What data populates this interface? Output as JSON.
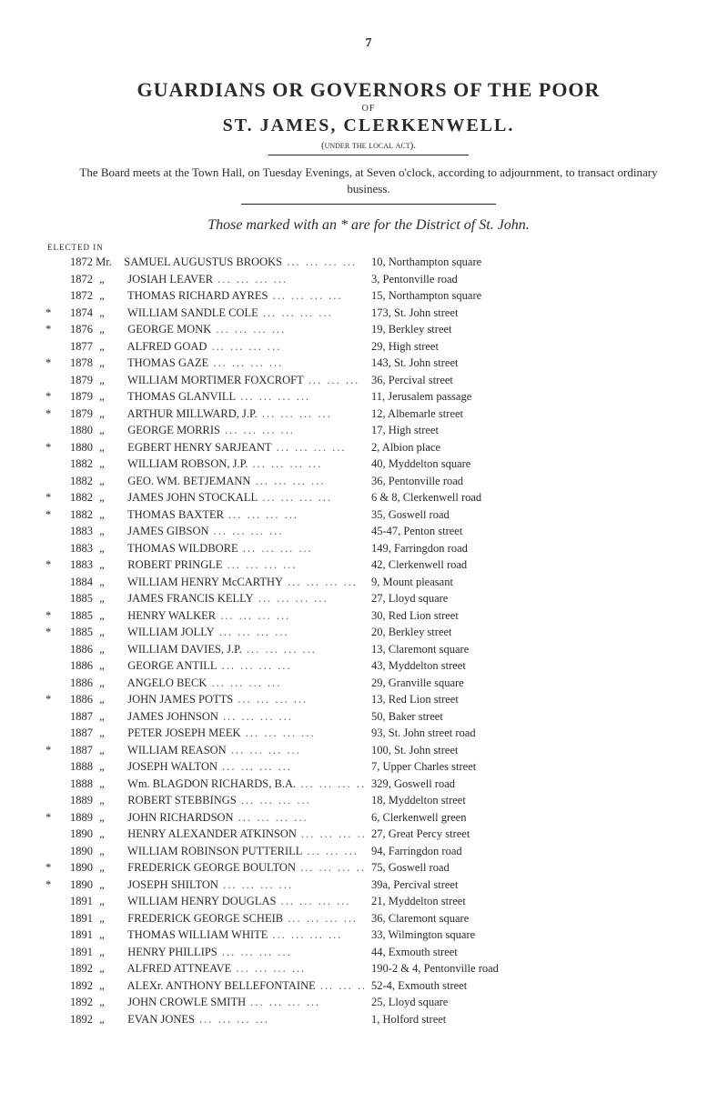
{
  "page_number": "7",
  "main_title": "GUARDIANS OR GOVERNORS OF THE POOR",
  "of_word": "OF",
  "sub_title": "ST. JAMES, CLERKENWELL.",
  "under_act": "(under the local act).",
  "board_text": "The Board meets at the Town Hall, on Tuesday Evenings, at Seven o'clock, according to adjournment, to transact ordinary business.",
  "italic_line": "Those marked with an * are for the District of St. John.",
  "elected_in": "ELECTED IN",
  "first_title": "Mr.",
  "entries": [
    {
      "star": "",
      "year": "1872",
      "title": "Mr.",
      "name": "SAMUEL AUGUSTUS BROOKS",
      "addr": "10, Northampton square"
    },
    {
      "star": "",
      "year": "1872",
      "title": "„",
      "name": "JOSIAH LEAVER",
      "addr": "3, Pentonville road"
    },
    {
      "star": "",
      "year": "1872",
      "title": "„",
      "name": "THOMAS RICHARD AYRES",
      "addr": "15, Northampton square"
    },
    {
      "star": "*",
      "year": "1874",
      "title": "„",
      "name": "WILLIAM SANDLE COLE",
      "addr": "173, St. John street"
    },
    {
      "star": "*",
      "year": "1876",
      "title": "„",
      "name": "GEORGE MONK",
      "addr": "19, Berkley street"
    },
    {
      "star": "",
      "year": "1877",
      "title": "„",
      "name": "ALFRED GOAD",
      "addr": "29, High street"
    },
    {
      "star": "*",
      "year": "1878",
      "title": "„",
      "name": "THOMAS GAZE",
      "addr": "143, St. John street"
    },
    {
      "star": "",
      "year": "1879",
      "title": "„",
      "name": "WILLIAM MORTIMER FOXCROFT",
      "addr": "36, Percival street"
    },
    {
      "star": "*",
      "year": "1879",
      "title": "„",
      "name": "THOMAS GLANVILL",
      "addr": "11, Jerusalem passage"
    },
    {
      "star": "*",
      "year": "1879",
      "title": "„",
      "name": "ARTHUR MILLWARD, J.P.",
      "addr": "12, Albemarle street"
    },
    {
      "star": "",
      "year": "1880",
      "title": "„",
      "name": "GEORGE MORRIS",
      "addr": "17, High street"
    },
    {
      "star": "*",
      "year": "1880",
      "title": "„",
      "name": "EGBERT HENRY SARJEANT",
      "addr": "2, Albion place"
    },
    {
      "star": "",
      "year": "1882",
      "title": "„",
      "name": "WILLIAM ROBSON, J.P.",
      "addr": "40, Myddelton square"
    },
    {
      "star": "",
      "year": "1882",
      "title": "„",
      "name": "GEO. WM. BETJEMANN",
      "addr": "36, Pentonville road"
    },
    {
      "star": "*",
      "year": "1882",
      "title": "„",
      "name": "JAMES JOHN STOCKALL",
      "addr": "6 & 8, Clerkenwell road"
    },
    {
      "star": "*",
      "year": "1882",
      "title": "„",
      "name": "THOMAS BAXTER",
      "addr": "35, Goswell road"
    },
    {
      "star": "",
      "year": "1883",
      "title": "„",
      "name": "JAMES GIBSON",
      "addr": "45-47, Penton street"
    },
    {
      "star": "",
      "year": "1883",
      "title": "„",
      "name": "THOMAS WILDBORE",
      "addr": "149, Farringdon road"
    },
    {
      "star": "*",
      "year": "1883",
      "title": "„",
      "name": "ROBERT PRINGLE",
      "addr": "42, Clerkenwell road"
    },
    {
      "star": "",
      "year": "1884",
      "title": "„",
      "name": "WILLIAM HENRY McCARTHY",
      "addr": "9, Mount pleasant"
    },
    {
      "star": "",
      "year": "1885",
      "title": "„",
      "name": "JAMES FRANCIS KELLY",
      "addr": "27, Lloyd square"
    },
    {
      "star": "*",
      "year": "1885",
      "title": "„",
      "name": "HENRY WALKER",
      "addr": "30, Red Lion street"
    },
    {
      "star": "*",
      "year": "1885",
      "title": "„",
      "name": "WILLIAM JOLLY",
      "addr": "20, Berkley street"
    },
    {
      "star": "",
      "year": "1886",
      "title": "„",
      "name": "WILLIAM DAVIES, J.P.",
      "addr": "13, Claremont square"
    },
    {
      "star": "",
      "year": "1886",
      "title": "„",
      "name": "GEORGE ANTILL",
      "addr": "43, Myddelton street"
    },
    {
      "star": "",
      "year": "1886",
      "title": "„",
      "name": "ANGELO BECK",
      "addr": "29, Granville square"
    },
    {
      "star": "*",
      "year": "1886",
      "title": "„",
      "name": "JOHN JAMES POTTS",
      "addr": "13, Red Lion street"
    },
    {
      "star": "",
      "year": "1887",
      "title": "„",
      "name": "JAMES JOHNSON",
      "addr": "50, Baker street"
    },
    {
      "star": "",
      "year": "1887",
      "title": "„",
      "name": "PETER JOSEPH MEEK",
      "addr": "93, St. John street road"
    },
    {
      "star": "*",
      "year": "1887",
      "title": "„",
      "name": "WILLIAM REASON",
      "addr": "100, St. John street"
    },
    {
      "star": "",
      "year": "1888",
      "title": "„",
      "name": "JOSEPH WALTON",
      "addr": "7, Upper Charles street"
    },
    {
      "star": "",
      "year": "1888",
      "title": "„",
      "name": "Wm. BLAGDON RICHARDS, B.A.",
      "addr": "329, Goswell road"
    },
    {
      "star": "",
      "year": "1889",
      "title": "„",
      "name": "ROBERT STEBBINGS",
      "addr": "18, Myddelton street"
    },
    {
      "star": "*",
      "year": "1889",
      "title": "„",
      "name": "JOHN RICHARDSON",
      "addr": "6, Clerkenwell green"
    },
    {
      "star": "",
      "year": "1890",
      "title": "„",
      "name": "HENRY ALEXANDER ATKINSON",
      "addr": "27, Great Percy street"
    },
    {
      "star": "",
      "year": "1890",
      "title": "„",
      "name": "WILLIAM ROBINSON PUTTERILL",
      "addr": "94, Farringdon road"
    },
    {
      "star": "*",
      "year": "1890",
      "title": "„",
      "name": "FREDERICK GEORGE BOULTON",
      "addr": "75, Goswell road"
    },
    {
      "star": "*",
      "year": "1890",
      "title": "„",
      "name": "JOSEPH SHILTON",
      "addr": "39a, Percival street"
    },
    {
      "star": "",
      "year": "1891",
      "title": "„",
      "name": "WILLIAM HENRY DOUGLAS",
      "addr": "21, Myddelton street"
    },
    {
      "star": "",
      "year": "1891",
      "title": "„",
      "name": "FREDERICK GEORGE SCHEIB",
      "addr": "36, Claremont square"
    },
    {
      "star": "",
      "year": "1891",
      "title": "„",
      "name": "THOMAS WILLIAM WHITE",
      "addr": "33, Wilmington square"
    },
    {
      "star": "",
      "year": "1891",
      "title": "„",
      "name": "HENRY PHILLIPS",
      "addr": "44, Exmouth street"
    },
    {
      "star": "",
      "year": "1892",
      "title": "„",
      "name": "ALFRED ATTNEAVE",
      "addr": "190-2 & 4, Pentonville road"
    },
    {
      "star": "",
      "year": "1892",
      "title": "„",
      "name": "ALEXr. ANTHONY BELLEFONTAINE",
      "addr": "52-4, Exmouth street"
    },
    {
      "star": "",
      "year": "1892",
      "title": "„",
      "name": "JOHN CROWLE SMITH",
      "addr": "25, Lloyd square"
    },
    {
      "star": "",
      "year": "1892",
      "title": "„",
      "name": "EVAN JONES",
      "addr": "1, Holford street"
    }
  ]
}
